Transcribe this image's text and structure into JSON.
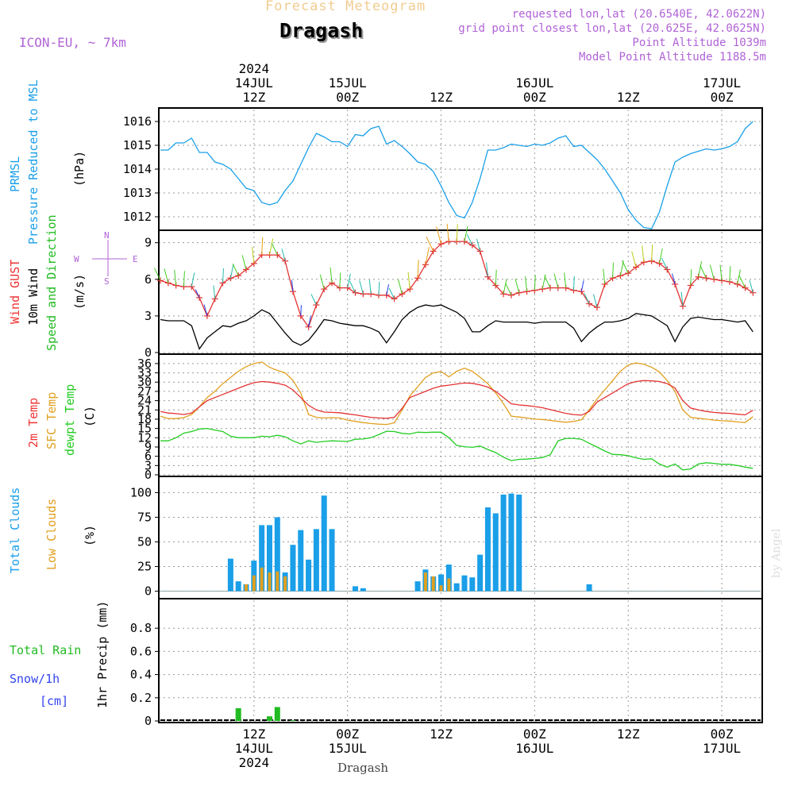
{
  "header": {
    "top_title": "Forecast Meteogram",
    "location": "Dragash",
    "model": "ICON-EU, ~ 7km",
    "requested": "requested lon,lat (20.6540E, 42.0622N)",
    "grid": "grid point closest lon,lat (20.625E, 42.0625N)",
    "point_alt": "Point Altitude 1039m",
    "model_alt": "Model Point Altitude 1188.5m"
  },
  "footer": {
    "location": "Dragash",
    "credit": "by Angel"
  },
  "time_axis": {
    "top_labels": [
      {
        "h": 12,
        "lines": [
          "2024",
          "14JUL",
          "12Z"
        ]
      },
      {
        "h": 24,
        "lines": [
          "15JUL",
          "00Z"
        ]
      },
      {
        "h": 36,
        "lines": [
          "12Z"
        ]
      },
      {
        "h": 48,
        "lines": [
          "16JUL",
          "00Z"
        ]
      },
      {
        "h": 60,
        "lines": [
          "12Z"
        ]
      },
      {
        "h": 72,
        "lines": [
          "17JUL",
          "00Z"
        ]
      }
    ],
    "bottom_labels": [
      {
        "h": 12,
        "lines": [
          "12Z",
          "14JUL",
          "2024"
        ]
      },
      {
        "h": 24,
        "lines": [
          "00Z",
          "15JUL"
        ]
      },
      {
        "h": 36,
        "lines": [
          "12Z"
        ]
      },
      {
        "h": 48,
        "lines": [
          "00Z",
          "16JUL"
        ]
      },
      {
        "h": 60,
        "lines": [
          "12Z"
        ]
      },
      {
        "h": 72,
        "lines": [
          "00Z",
          "17JUL"
        ]
      }
    ]
  },
  "panels": {
    "pressure": {
      "labels": [
        "PRMSL",
        "Pressure Reduced to MSL",
        "(hPa)"
      ],
      "label_colors": [
        "#1a9fe8",
        "#1a9fe8",
        "#000000"
      ]
    },
    "wind": {
      "labels": [
        "Wind GUST",
        "10m Wind",
        "Speed and Direction",
        "(m/s)"
      ],
      "label_colors": [
        "#e33",
        "#000000",
        "#22bb22",
        "#000000"
      ],
      "compass": {
        "n": "N",
        "s": "S",
        "w": "W",
        "e": "E"
      }
    },
    "temp": {
      "labels": [
        "2m Temp",
        "SFC Temp",
        "dewpt Temp",
        "(C)"
      ],
      "label_colors": [
        "#e33",
        "#e0a020",
        "#22cc22",
        "#000000"
      ]
    },
    "clouds": {
      "labels": [
        "Total Clouds",
        "Low Clouds",
        "(%)"
      ],
      "label_colors": [
        "#1a9fe8",
        "#e0a020",
        "#000000"
      ]
    },
    "precip": {
      "labels": [
        "Total  Rain",
        "Snow/1h",
        "[cm]",
        "1hr Precip (mm)"
      ],
      "label_colors": [
        "#22bb22",
        "#3344ee",
        "#3344ee",
        "#000000"
      ]
    }
  },
  "colors": {
    "pressure": "#1a9fe8",
    "gust": "#e33333",
    "wind": "#000000",
    "t2m": "#e33333",
    "tsfc": "#e0a020",
    "dewpt": "#22cc22",
    "total_cloud": "#1a9fe8",
    "low_cloud": "#e0a020",
    "rain": "#22bb22"
  },
  "chart_data": [
    {
      "type": "line",
      "title": "PRMSL",
      "ylabel": "(hPa)",
      "ylim": [
        1011.5,
        1016.3
      ],
      "yticks": [
        1012,
        1013,
        1014,
        1015,
        1016
      ],
      "x": [
        0,
        1,
        2,
        3,
        4,
        5,
        6,
        7,
        8,
        9,
        10,
        11,
        12,
        13,
        14,
        15,
        16,
        17,
        18,
        19,
        20,
        21,
        22,
        23,
        24,
        25,
        26,
        27,
        28,
        29,
        30,
        31,
        32,
        33,
        34,
        35,
        36,
        37,
        38,
        39,
        40,
        41,
        42,
        43,
        44,
        45,
        46,
        47,
        48,
        49,
        50,
        51,
        52,
        53,
        54,
        55,
        56,
        57,
        58,
        59,
        60,
        61,
        62,
        63,
        64,
        65,
        66,
        67,
        68,
        69,
        70,
        71,
        72,
        73,
        74,
        75,
        76
      ],
      "values": [
        1014.8,
        1014.8,
        1015.1,
        1015.1,
        1015.3,
        1014.7,
        1014.7,
        1014.3,
        1014.2,
        1014.0,
        1013.6,
        1013.2,
        1013.1,
        1012.6,
        1012.5,
        1012.6,
        1013.1,
        1013.5,
        1014.2,
        1014.9,
        1015.5,
        1015.35,
        1015.15,
        1015.15,
        1014.95,
        1015.45,
        1015.4,
        1015.7,
        1015.8,
        1015.05,
        1015.2,
        1014.95,
        1014.65,
        1014.3,
        1014.2,
        1013.9,
        1013.3,
        1012.6,
        1012.05,
        1011.95,
        1012.6,
        1013.6,
        1014.8,
        1014.8,
        1014.9,
        1015.05,
        1015.0,
        1014.95,
        1015.05,
        1015.0,
        1015.1,
        1015.3,
        1015.4,
        1014.95,
        1015.0,
        1014.7,
        1014.4,
        1014.0,
        1013.5,
        1013.0,
        1012.3,
        1011.85,
        1011.55,
        1011.5,
        1012.2,
        1013.3,
        1014.3,
        1014.5,
        1014.65,
        1014.75,
        1014.85,
        1014.8,
        1014.85,
        1014.95,
        1015.15,
        1015.7,
        1016.0
      ]
    },
    {
      "type": "line",
      "title": "Wind",
      "ylabel": "(m/s)",
      "ylim": [
        0,
        9.5
      ],
      "yticks": [
        0,
        3,
        6,
        9
      ],
      "series": [
        {
          "name": "Wind GUST",
          "values": [
            5.9,
            5.7,
            5.5,
            5.4,
            5.4,
            4.5,
            3,
            4.4,
            5.7,
            6.1,
            6.3,
            6.8,
            7.3,
            8,
            8,
            8,
            7.5,
            5,
            3,
            2.1,
            3.9,
            5.2,
            5.7,
            5.3,
            5.3,
            4.9,
            4.8,
            4.8,
            4.7,
            4.7,
            4.4,
            4.8,
            5.2,
            6.1,
            7.2,
            8.3,
            8.9,
            9.1,
            9.1,
            9.1,
            8.8,
            8.3,
            6.2,
            5.5,
            4.8,
            4.7,
            4.9,
            5.0,
            5.1,
            5.2,
            5.3,
            5.3,
            5.3,
            5.1,
            5.0,
            4.0,
            3.7,
            5.6,
            6.1,
            6.3,
            6.5,
            7.0,
            7.4,
            7.5,
            7.3,
            6.8,
            5.6,
            3.8,
            5.5,
            6.2,
            6.1,
            6.0,
            5.9,
            5.8,
            5.6,
            5.3,
            4.9
          ]
        },
        {
          "name": "10m Wind",
          "values": [
            2.7,
            2.6,
            2.6,
            2.6,
            2.2,
            0.3,
            1.2,
            1.7,
            2.2,
            2.1,
            2.4,
            2.6,
            3.0,
            3.5,
            3.2,
            2.4,
            1.6,
            0.9,
            0.6,
            1.0,
            1.8,
            2.7,
            2.6,
            2.4,
            2.3,
            2.2,
            2.2,
            2.0,
            1.7,
            0.8,
            1.7,
            2.7,
            3.3,
            3.7,
            3.9,
            3.8,
            3.9,
            3.6,
            3.3,
            2.8,
            1.7,
            1.7,
            2.2,
            2.6,
            2.5,
            2.5,
            2.5,
            2.5,
            2.4,
            2.5,
            2.5,
            2.5,
            2.5,
            2.0,
            0.9,
            1.6,
            2.1,
            2.5,
            2.5,
            2.6,
            2.8,
            3.2,
            3.1,
            3.0,
            2.6,
            2.2,
            0.9,
            2.1,
            2.8,
            2.9,
            2.8,
            2.7,
            2.7,
            2.6,
            2.5,
            2.6,
            1.7
          ]
        }
      ]
    },
    {
      "type": "line",
      "title": "Temperature",
      "ylabel": "(C)",
      "ylim": [
        0,
        37
      ],
      "yticks": [
        0,
        3,
        6,
        9,
        12,
        15,
        18,
        21,
        24,
        27,
        30,
        33,
        36
      ],
      "series": [
        {
          "name": "2m Temp",
          "values": [
            20.5,
            20,
            19.8,
            19.5,
            20,
            22,
            24,
            25,
            26,
            27,
            28,
            29,
            29.8,
            30.2,
            30,
            29.6,
            29,
            27.5,
            25,
            22.5,
            21,
            20.3,
            20.2,
            20.1,
            19.7,
            19.4,
            19,
            18.6,
            18.4,
            18.3,
            18.6,
            21.5,
            25,
            26,
            27,
            28,
            28.7,
            29,
            29.4,
            29.7,
            29.6,
            29.1,
            28.4,
            27,
            25,
            23,
            22.6,
            22.4,
            22.1,
            21.7,
            21.1,
            20.5,
            19.9,
            19.5,
            19.3,
            20.5,
            23.5,
            25,
            26.5,
            28,
            29.5,
            30.2,
            30.5,
            30.4,
            30.2,
            29.5,
            28.1,
            24,
            21.6,
            21,
            20.5,
            20.2,
            20,
            19.9,
            19.6,
            19.4,
            20.9
          ]
        },
        {
          "name": "SFC Temp",
          "values": [
            19,
            18.2,
            18.2,
            18.5,
            19.5,
            22,
            25,
            27,
            29.5,
            31.5,
            33.5,
            35,
            36,
            36.5,
            34.8,
            33.8,
            33,
            30.6,
            26.5,
            19.5,
            18.6,
            18.4,
            18.5,
            18.4,
            17.7,
            17.3,
            16.9,
            16.6,
            16.4,
            16.3,
            16.8,
            21,
            25.5,
            28.5,
            31.5,
            33,
            33.4,
            31.7,
            33.5,
            34.5,
            33.5,
            31.6,
            29.5,
            26.5,
            23,
            19,
            18.7,
            18.4,
            18,
            17.9,
            17.6,
            17.3,
            17,
            17.3,
            17.8,
            21,
            24.5,
            27.5,
            30.5,
            33.5,
            35.5,
            36.2,
            35.8,
            34.8,
            33.3,
            30.5,
            27,
            21,
            18.6,
            18.3,
            18,
            17.7,
            17.5,
            17.4,
            17.1,
            16.9,
            18.8
          ]
        },
        {
          "name": "dewpt Temp",
          "values": [
            11,
            11,
            12,
            13.5,
            14,
            14.8,
            15,
            14.5,
            14,
            12.5,
            12,
            12,
            12,
            12.5,
            12.3,
            12.8,
            12.3,
            11,
            10,
            11,
            10.5,
            10.8,
            11,
            10.9,
            10.8,
            11.5,
            11.6,
            12,
            13,
            14.1,
            14,
            13.4,
            13.2,
            13.8,
            13.7,
            13.8,
            13.8,
            12,
            9.5,
            9.1,
            8.9,
            9.3,
            8.2,
            7.2,
            5.7,
            4.6,
            5,
            5.1,
            5.3,
            5.6,
            6.5,
            11,
            11.8,
            11.8,
            11.5,
            10.2,
            9,
            7.7,
            6.6,
            6.5,
            6.2,
            5.5,
            5,
            5.2,
            3.5,
            2.5,
            3.5,
            1.6,
            1.9,
            3.5,
            3.9,
            3.7,
            3.4,
            3.4,
            3,
            2.5,
            2.1
          ]
        }
      ]
    },
    {
      "type": "bar",
      "title": "Clouds",
      "ylabel": "(%)",
      "ylim": [
        -6,
        110
      ],
      "yticks": [
        0,
        25,
        50,
        75,
        100
      ],
      "series": [
        {
          "name": "Total Clouds",
          "values": [
            0,
            0,
            0,
            0,
            0,
            0,
            0,
            0,
            0,
            33,
            10,
            7,
            31,
            67,
            67,
            75,
            19,
            47,
            62,
            32,
            63,
            97,
            63,
            0,
            0,
            5,
            3,
            0,
            0,
            0,
            0,
            0,
            0,
            10,
            22,
            15,
            17,
            27,
            8,
            16,
            14,
            37,
            85,
            79,
            98,
            99,
            98,
            0,
            0,
            0,
            0,
            0,
            0,
            0,
            0,
            7,
            0,
            0,
            0,
            0,
            0,
            0,
            0,
            0,
            0,
            0,
            0,
            0,
            0,
            0,
            0,
            0,
            0,
            0,
            0,
            0,
            0
          ]
        },
        {
          "name": "Low Clouds",
          "values": [
            0,
            0,
            0,
            0,
            0,
            0,
            0,
            0,
            0,
            0,
            0,
            7,
            16,
            24,
            19,
            20,
            15,
            0,
            0,
            0,
            0,
            0,
            0,
            0,
            0,
            0,
            0,
            0,
            0,
            0,
            0,
            0,
            0,
            0,
            19,
            15,
            6,
            13,
            0,
            0,
            0,
            0,
            0,
            0,
            0,
            0,
            0,
            0,
            0,
            0,
            0,
            0,
            0,
            0,
            0,
            0,
            0,
            0,
            0,
            0,
            0,
            0,
            0,
            0,
            0,
            0,
            0,
            0,
            0,
            0,
            0,
            0,
            0,
            0,
            0,
            0,
            0
          ]
        }
      ]
    },
    {
      "type": "bar",
      "title": "1hr Precip",
      "ylabel": "1hr Precip (mm)",
      "ylim": [
        0,
        1
      ],
      "yticks": [
        0,
        0.2,
        0.4,
        0.6,
        0.8
      ],
      "series": [
        {
          "name": "Total Rain",
          "values": [
            0,
            0,
            0,
            0,
            0,
            0,
            0,
            0,
            0,
            0,
            0.11,
            0,
            0,
            0,
            0.04,
            0.12,
            0,
            0.005,
            0,
            0,
            0,
            0,
            0,
            0,
            0,
            0,
            0,
            0,
            0,
            0,
            0,
            0,
            0,
            0,
            0,
            0,
            0,
            0,
            0,
            0,
            0,
            0,
            0,
            0,
            0,
            0,
            0,
            0,
            0,
            0,
            0,
            0,
            0,
            0,
            0,
            0,
            0,
            0,
            0,
            0,
            0,
            0,
            0,
            0,
            0,
            0,
            0,
            0,
            0,
            0,
            0,
            0,
            0,
            0,
            0,
            0,
            0
          ]
        }
      ]
    }
  ]
}
